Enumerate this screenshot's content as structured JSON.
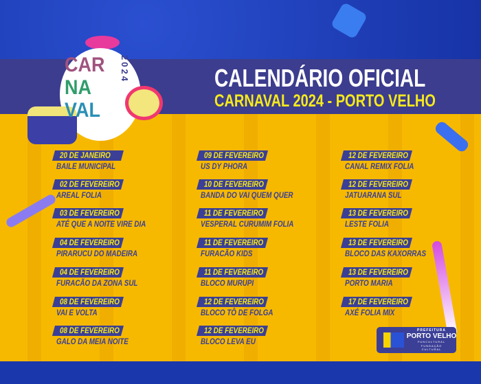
{
  "header": {
    "title": "CALENDÁRIO OFICIAL",
    "subtitle": "CARNAVAL 2024 - PORTO VELHO"
  },
  "logo": {
    "line1": "CAR",
    "line2": "NA",
    "line3": "VAL",
    "year": "2024"
  },
  "colors": {
    "background_blue": "#1c3cb4",
    "banner": "#3c3d8e",
    "yellow": "#f6b900",
    "tag": "#3b3f96",
    "tag_text": "#f6e61b"
  },
  "columns": [
    [
      {
        "date": "20 DE JANEIRO",
        "name": "BAILE MUNICIPAL"
      },
      {
        "date": "02 DE FEVEREIRO",
        "name": "AREAL FOLIA"
      },
      {
        "date": "03 DE FEVEREIRO",
        "name": "ATÉ QUE A NOITE VIRE DIA"
      },
      {
        "date": "04 DE FEVEREIRO",
        "name": "PIRARUCU DO MADEIRA"
      },
      {
        "date": "04 DE FEVEREIRO",
        "name": "FURACÃO DA ZONA SUL"
      },
      {
        "date": "08 DE FEVEREIRO",
        "name": "VAI E VOLTA"
      },
      {
        "date": "08 DE FEVEREIRO",
        "name": "GALO DA MEIA NOITE"
      }
    ],
    [
      {
        "date": "09 DE FEVEREIRO",
        "name": "US DY PHORA"
      },
      {
        "date": "10 DE FEVEREIRO",
        "name": "BANDA DO VAI QUEM QUER"
      },
      {
        "date": "11 DE FEVEREIRO",
        "name": "VESPERAL CURUMIM FOLIA"
      },
      {
        "date": "11 DE FEVEREIRO",
        "name": "FURACÃO KIDS"
      },
      {
        "date": "11 DE FEVEREIRO",
        "name": "BLOCO MURUPI"
      },
      {
        "date": "12 DE FEVEREIRO",
        "name": "BLOCO TÔ DE FOLGA"
      },
      {
        "date": "12 DE FEVEREIRO",
        "name": "BLOCO LEVA EU"
      }
    ],
    [
      {
        "date": "12 DE FEVEREIRO",
        "name": "CANAL REMIX FOLIA"
      },
      {
        "date": "12 DE FEVEREIRO",
        "name": "JATUARANA SUL"
      },
      {
        "date": "13 DE FEVEREIRO",
        "name": "LESTE FOLIA"
      },
      {
        "date": "13 DE FEVEREIRO",
        "name": "BLOCO DAS KAXORRAS"
      },
      {
        "date": "13 DE FEVEREIRO",
        "name": "PORTO MARIA"
      },
      {
        "date": "17 DE FEVEREIRO",
        "name": "AXÉ FOLIA MIX"
      }
    ]
  ],
  "footer_logo": {
    "line1": "PREFEITURA",
    "line2": "PORTO VELHO",
    "line3": "FUNCULTURAL",
    "line4": "FUNDAÇÃO",
    "line5": "CULTURAL"
  }
}
